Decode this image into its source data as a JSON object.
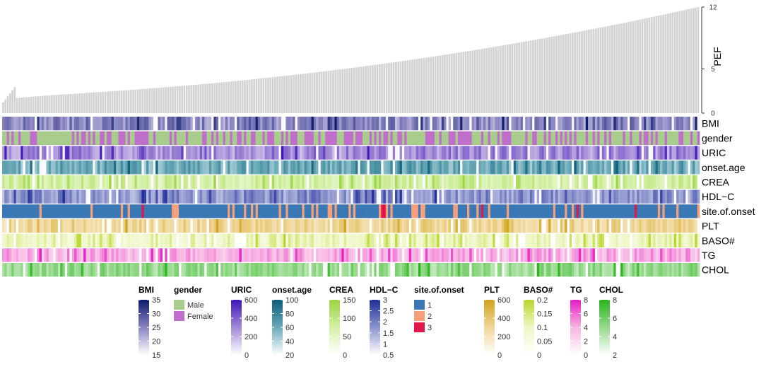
{
  "chart_data": {
    "type": "heatmap",
    "top_barplot": {
      "type": "bar",
      "ylabel": "PEF",
      "ylim": [
        0,
        12
      ],
      "yticks": [
        0,
        5,
        12
      ],
      "n_samples": 300,
      "min_value": 1.2,
      "max_value": 12.0,
      "sorted": "ascending"
    },
    "rows": [
      {
        "name": "BMI",
        "kind": "continuous",
        "range": [
          15,
          35
        ],
        "ticks": [
          35,
          30,
          25,
          20,
          15
        ],
        "colors": [
          "#ffffff",
          "#8a86c2",
          "#0c1a6b"
        ]
      },
      {
        "name": "gender",
        "kind": "categorical",
        "levels": [
          "Male",
          "Female"
        ],
        "colors": [
          "#a8cc8c",
          "#bf6ecb"
        ],
        "proportions": [
          0.6,
          0.4
        ]
      },
      {
        "name": "URIC",
        "kind": "continuous",
        "range": [
          0,
          600
        ],
        "ticks": [
          600,
          400,
          200,
          0
        ],
        "colors": [
          "#ffffff",
          "#a38ad6",
          "#3d14b8"
        ]
      },
      {
        "name": "onset.age",
        "kind": "continuous",
        "range": [
          20,
          100
        ],
        "ticks": [
          100,
          80,
          60,
          40,
          20
        ],
        "colors": [
          "#ffffff",
          "#6aaab8",
          "#0c5e7a"
        ]
      },
      {
        "name": "CREA",
        "kind": "continuous",
        "range": [
          0,
          150
        ],
        "ticks": [
          150,
          100,
          50,
          0
        ],
        "colors": [
          "#ffffff",
          "#d4f0a6",
          "#9ad43f"
        ]
      },
      {
        "name": "HDL−C",
        "kind": "continuous",
        "range": [
          0.5,
          3
        ],
        "ticks": [
          3,
          2.5,
          2,
          1.5,
          1,
          0.5
        ],
        "colors": [
          "#ffffff",
          "#8b93cc",
          "#1f2e99"
        ]
      },
      {
        "name": "site.of.onset",
        "kind": "categorical",
        "levels": [
          "1",
          "2",
          "3"
        ],
        "colors": [
          "#3a77b5",
          "#f5a07a",
          "#e0174a"
        ],
        "proportions": [
          0.78,
          0.17,
          0.05
        ]
      },
      {
        "name": "PLT",
        "kind": "continuous",
        "range": [
          0,
          600
        ],
        "ticks": [
          600,
          400,
          200,
          0
        ],
        "colors": [
          "#ffffff",
          "#f0d79a",
          "#cfa21a"
        ]
      },
      {
        "name": "BASO#",
        "kind": "continuous",
        "range": [
          0,
          0.2
        ],
        "ticks": [
          0.2,
          0.15,
          0.1,
          0.05,
          0
        ],
        "colors": [
          "#ffffff",
          "#eff6c6",
          "#b9d62a"
        ]
      },
      {
        "name": "TG",
        "kind": "continuous",
        "range": [
          0,
          8
        ],
        "ticks": [
          8,
          6,
          4,
          2,
          0
        ],
        "colors": [
          "#ffffff",
          "#f7b5e3",
          "#e81ac2"
        ]
      },
      {
        "name": "CHOL",
        "kind": "continuous",
        "range": [
          2,
          8
        ],
        "ticks": [
          8,
          6,
          4,
          2
        ],
        "colors": [
          "#ffffff",
          "#96d98c",
          "#28b51a"
        ]
      }
    ]
  }
}
